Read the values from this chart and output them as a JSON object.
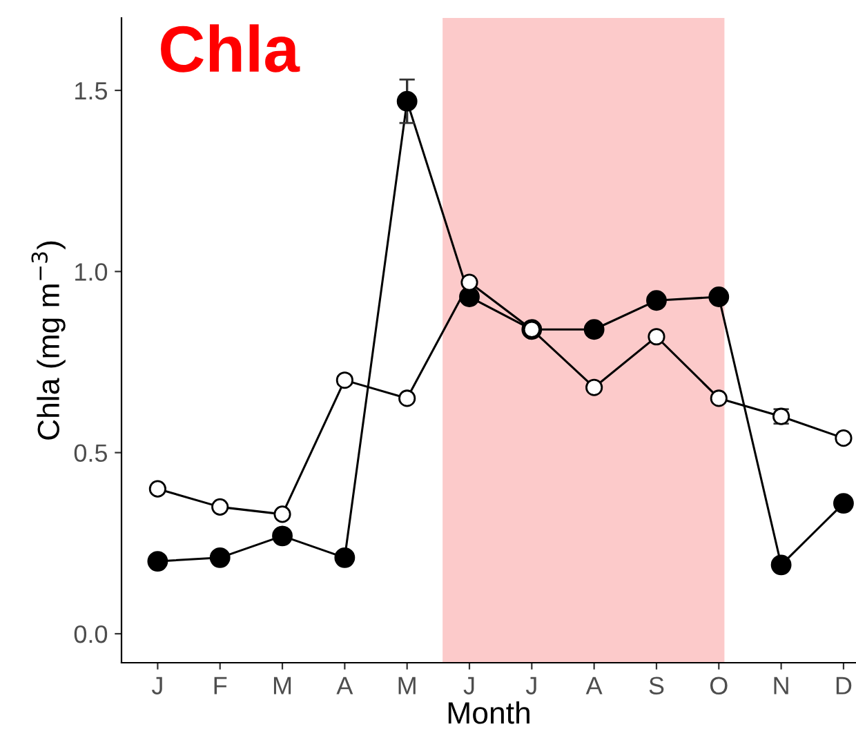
{
  "chart_data": {
    "type": "line",
    "title": "Chla",
    "xlabel": "Month",
    "ylabel": "Chla (mg m$^{−3}$)",
    "categories": [
      "J",
      "F",
      "M",
      "A",
      "M",
      "J",
      "J",
      "A",
      "S",
      "O",
      "N",
      "D"
    ],
    "ylim": [
      -0.08,
      1.7
    ],
    "yticks": [
      {
        "value": 0,
        "label": "0.0"
      },
      {
        "value": 0.5,
        "label": "0.5"
      },
      {
        "value": 1,
        "label": "1.0"
      },
      {
        "value": 1.5,
        "label": "1.5"
      }
    ],
    "marker": "circle",
    "grid": false,
    "series": [
      {
        "color": "#000000",
        "values": [
          0.2,
          0.21,
          0.27,
          0.21,
          1.47,
          0.93,
          0.84,
          0.84,
          0.92,
          0.93,
          0.19,
          0.36
        ],
        "errors": [
          null,
          null,
          null,
          null,
          0.06,
          0.015,
          null,
          0.015,
          0.015,
          0.015,
          null,
          null
        ]
      },
      {
        "color": "#ffffff",
        "values": [
          0.4,
          0.35,
          0.33,
          0.7,
          0.65,
          0.97,
          0.84,
          0.68,
          0.82,
          0.65,
          0.6,
          0.54
        ],
        "errors": [
          null,
          null,
          null,
          0.01,
          null,
          null,
          0.015,
          null,
          null,
          null,
          0.02,
          null
        ]
      }
    ]
  }
}
